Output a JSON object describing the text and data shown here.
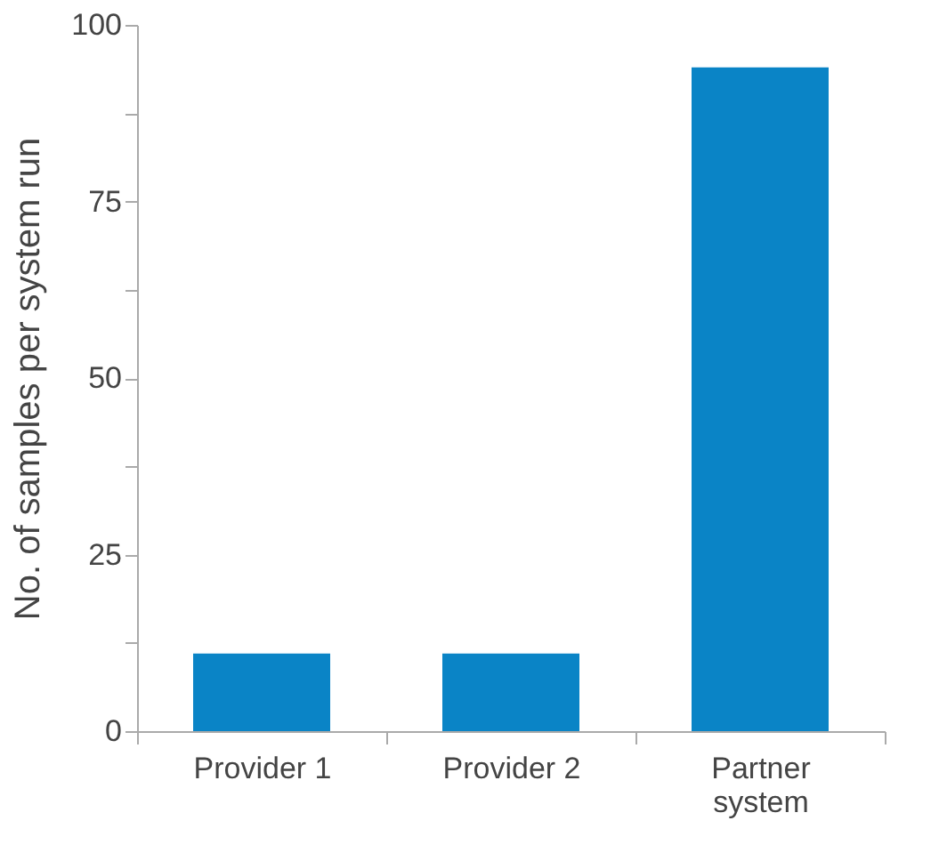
{
  "chart_data": {
    "type": "bar",
    "ylabel": "No. of samples per system run",
    "categories": [
      "Provider 1",
      "Provider 2",
      "Partner\nsystem"
    ],
    "values": [
      11,
      11,
      94
    ],
    "color": "#0a84c6",
    "ylim": [
      0,
      100
    ],
    "yticks": [
      0,
      {
        "value": 12.5,
        "label": null
      },
      25,
      {
        "value": 37.5,
        "label": null
      },
      50,
      {
        "value": 62.5,
        "label": null
      },
      75,
      {
        "value": 87.5,
        "label": null
      },
      100
    ],
    "grid": false
  }
}
